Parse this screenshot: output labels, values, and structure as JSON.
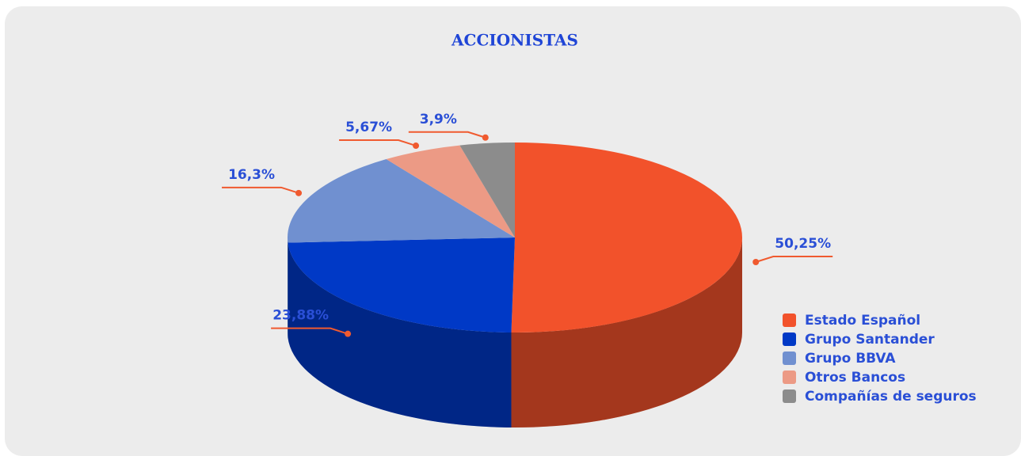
{
  "chart_data": {
    "type": "pie3d",
    "title": "ACCIONISTAS",
    "categories": [
      "Estado Español",
      "Grupo Santander",
      "Grupo BBVA",
      "Otros Bancos",
      "Compañías de seguros"
    ],
    "values": [
      50.25,
      23.88,
      16.3,
      5.67,
      3.9
    ],
    "value_labels": [
      "50,25%",
      "23,88%",
      "16,3%",
      "5,67%",
      "3,9%"
    ],
    "colors": [
      "#f2522b",
      "#0039c6",
      "#7090d0",
      "#ec9a85",
      "#8c8c8c"
    ],
    "legend": "right"
  }
}
